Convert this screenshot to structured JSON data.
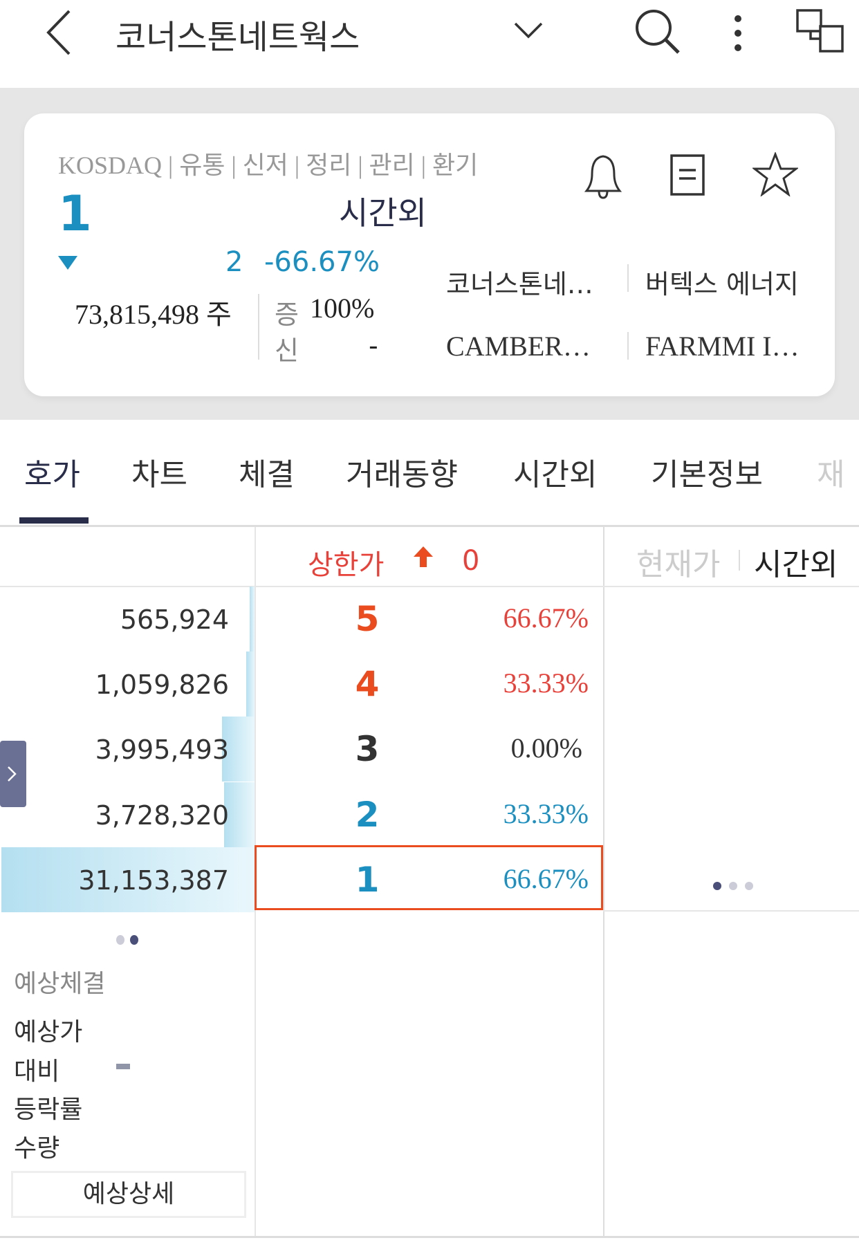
{
  "header": {
    "title": "코너스톤네트웍스",
    "icons": [
      "back-chevron-icon",
      "dropdown-chevron-icon",
      "search-icon",
      "more-vertical-icon",
      "multi-window-icon"
    ]
  },
  "summary": {
    "tags": "KOSDAQ | 유통 | 신저 | 정리 | 관리 | 환기",
    "price": "1",
    "session": "시간외",
    "change": "2",
    "change_pct": "-66.67%",
    "volume": "73,815,498 주",
    "margin_label": "증",
    "margin_value": "100%",
    "credit_label": "신",
    "credit_value": "-",
    "related": [
      "코너스톤네…",
      "버텍스 에너지",
      "CAMBER…",
      "FARMMI I…"
    ],
    "icons": [
      "bell-icon",
      "document-icon",
      "star-icon"
    ]
  },
  "tabs": [
    {
      "label": "호가",
      "active": true
    },
    {
      "label": "차트"
    },
    {
      "label": "체결"
    },
    {
      "label": "거래동향"
    },
    {
      "label": "시간외"
    },
    {
      "label": "기본정보"
    },
    {
      "label": "재"
    }
  ],
  "orderbook": {
    "upper_limit_label": "상한가",
    "upper_limit_value": "0",
    "right_header": {
      "current": "현재가",
      "after_hours": "시간외"
    },
    "rows": [
      {
        "volume": "565,924",
        "price": "5",
        "pct": "66.67%",
        "bar_fraction": 0.018
      },
      {
        "volume": "1,059,826",
        "price": "4",
        "pct": "33.33%",
        "bar_fraction": 0.034
      },
      {
        "volume": "3,995,493",
        "price": "3",
        "pct": "0.00%",
        "bar_fraction": 0.128
      },
      {
        "volume": "3,728,320",
        "price": "2",
        "pct": "33.33%",
        "bar_fraction": 0.12
      },
      {
        "volume": "31,153,387",
        "price": "1",
        "pct": "66.67%",
        "bar_fraction": 1.0
      }
    ],
    "colors": {
      "up": "#e8413a",
      "down": "#1a8fc0",
      "neutral": "#333333",
      "highlight": "#ea4b1f"
    }
  },
  "expected": {
    "title": "예상체결",
    "price_label": "예상가",
    "diff_label": "대비",
    "diff_value": "-",
    "rate_label": "등락률",
    "qty_label": "수량",
    "detail_button": "예상상세"
  }
}
